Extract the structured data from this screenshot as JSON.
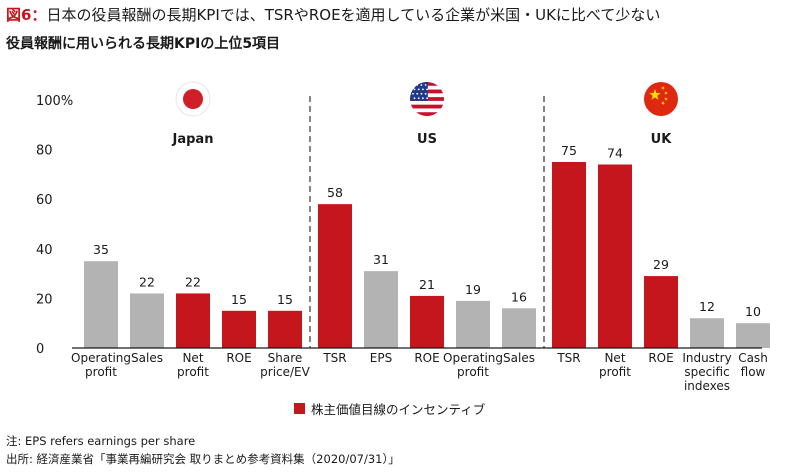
{
  "header": {
    "figure_label": "図6：",
    "title": "日本の役員報酬の長期KPIでは、TSRやROEを適用している企業が米国・UKに比べて少ない",
    "subtitle": "役員報酬に用いられる長期KPIの上位5項目"
  },
  "chart_data": {
    "type": "bar",
    "ylim": [
      0,
      100
    ],
    "yticks": [
      0,
      20,
      40,
      60,
      80,
      100
    ],
    "ytick_labels": [
      "0",
      "20",
      "40",
      "60",
      "80",
      "100%"
    ],
    "grid": false,
    "colors": {
      "incentive": "#c4161c",
      "other": "#b3b3b3"
    },
    "groups": [
      {
        "name": "Japan",
        "flag": "japan-flag",
        "bars": [
          {
            "label": [
              "Operating",
              "profit"
            ],
            "value": 35,
            "incentive": false
          },
          {
            "label": [
              "Sales"
            ],
            "value": 22,
            "incentive": false
          },
          {
            "label": [
              "Net",
              "profit"
            ],
            "value": 22,
            "incentive": true
          },
          {
            "label": [
              "ROE"
            ],
            "value": 15,
            "incentive": true
          },
          {
            "label": [
              "Share",
              "price/EV"
            ],
            "value": 15,
            "incentive": true
          }
        ]
      },
      {
        "name": "US",
        "flag": "us-flag",
        "bars": [
          {
            "label": [
              "TSR"
            ],
            "value": 58,
            "incentive": true
          },
          {
            "label": [
              "EPS"
            ],
            "value": 31,
            "incentive": false
          },
          {
            "label": [
              "ROE"
            ],
            "value": 21,
            "incentive": true
          },
          {
            "label": [
              "Operating",
              "profit"
            ],
            "value": 19,
            "incentive": false
          },
          {
            "label": [
              "Sales"
            ],
            "value": 16,
            "incentive": false
          }
        ]
      },
      {
        "name": "UK",
        "flag": "china-flag",
        "bars": [
          {
            "label": [
              "TSR"
            ],
            "value": 75,
            "incentive": true
          },
          {
            "label": [
              "Net",
              "profit"
            ],
            "value": 74,
            "incentive": true
          },
          {
            "label": [
              "ROE"
            ],
            "value": 29,
            "incentive": true
          },
          {
            "label": [
              "Industry",
              "specific",
              "indexes"
            ],
            "value": 12,
            "incentive": false
          },
          {
            "label": [
              "Cash",
              "flow"
            ],
            "value": 10,
            "incentive": false
          }
        ]
      }
    ],
    "legend": {
      "label": "株主価値目線のインセンティブ",
      "placement": "bottom-center"
    }
  },
  "footer": {
    "note": "注: EPS refers earnings per share",
    "source": "出所: 経済産業省「事業再編研究会 取りまとめ参考資料集（2020/07/31）」"
  }
}
